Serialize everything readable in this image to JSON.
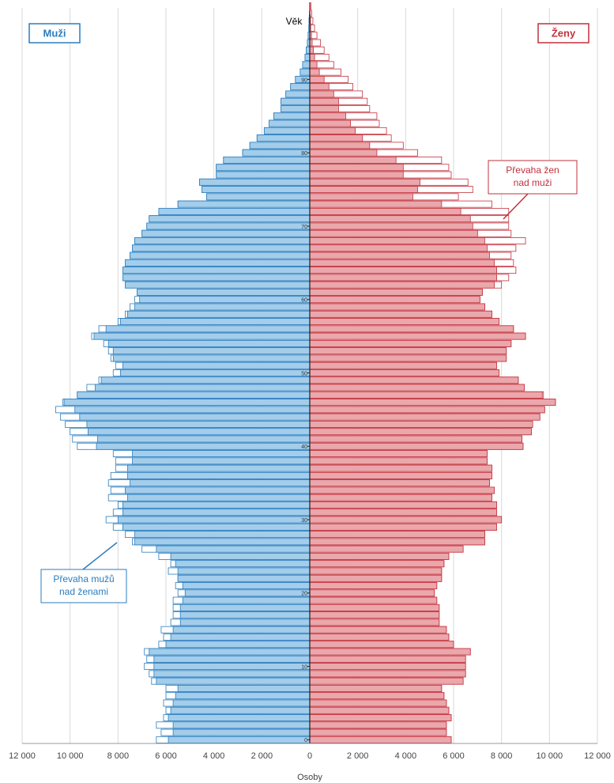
{
  "chart_data": {
    "type": "pyramid",
    "ylabel": "Věk",
    "xlabel": "Osoby",
    "y": [
      0,
      1,
      2,
      3,
      4,
      5,
      6,
      7,
      8,
      9,
      10,
      11,
      12,
      13,
      14,
      15,
      16,
      17,
      18,
      19,
      20,
      21,
      22,
      23,
      24,
      25,
      26,
      27,
      28,
      29,
      30,
      31,
      32,
      33,
      34,
      35,
      36,
      37,
      38,
      39,
      40,
      41,
      42,
      43,
      44,
      45,
      46,
      47,
      48,
      49,
      50,
      51,
      52,
      53,
      54,
      55,
      56,
      57,
      58,
      59,
      60,
      61,
      62,
      63,
      64,
      65,
      66,
      67,
      68,
      69,
      70,
      71,
      72,
      73,
      74,
      75,
      76,
      77,
      78,
      79,
      80,
      81,
      82,
      83,
      84,
      85,
      86,
      87,
      88,
      89,
      90,
      91,
      92,
      93,
      94,
      95,
      96,
      97,
      98,
      99,
      100
    ],
    "series": [
      {
        "name": "Muži",
        "side": "left",
        "color": "#a3cdea",
        "edge": "#2a7dbf",
        "values": [
          6400,
          6200,
          6400,
          6100,
          6000,
          6100,
          6000,
          6000,
          6600,
          6700,
          6900,
          6800,
          6900,
          6300,
          6100,
          6200,
          5800,
          5700,
          5700,
          5700,
          5500,
          5600,
          5500,
          5900,
          5800,
          6300,
          7000,
          7400,
          7700,
          8200,
          8500,
          8200,
          8000,
          8400,
          8300,
          8400,
          8300,
          8100,
          8100,
          8200,
          9700,
          9900,
          10000,
          10200,
          10400,
          10600,
          10300,
          9700,
          9300,
          8800,
          8200,
          8100,
          8300,
          8400,
          8600,
          9100,
          8800,
          8000,
          7700,
          7500,
          7300,
          7200,
          7700,
          7800,
          7800,
          7700,
          7500,
          7400,
          7300,
          7000,
          6800,
          6700,
          6300,
          5500,
          4300,
          4500,
          4600,
          3900,
          3900,
          3600,
          2800,
          2500,
          2200,
          1900,
          1700,
          1500,
          1200,
          1200,
          1000,
          800,
          600,
          400,
          300,
          200,
          150,
          100,
          70,
          40,
          30,
          20,
          10
        ]
      },
      {
        "name": "Ženy",
        "side": "right",
        "color": "#eaa7ac",
        "edge": "#c2313c",
        "values": [
          5900,
          5700,
          5700,
          5900,
          5800,
          5700,
          5600,
          5500,
          6400,
          6500,
          6500,
          6500,
          6700,
          6000,
          5800,
          5700,
          5400,
          5400,
          5400,
          5300,
          5200,
          5300,
          5500,
          5500,
          5600,
          5800,
          6400,
          7300,
          7300,
          7800,
          8000,
          7800,
          7800,
          7600,
          7700,
          7500,
          7600,
          7600,
          7400,
          7400,
          8900,
          8850,
          9250,
          9300,
          9600,
          9800,
          10250,
          9750,
          8950,
          8700,
          7900,
          7800,
          8200,
          8200,
          8400,
          9000,
          8500,
          7900,
          7600,
          7300,
          7100,
          7200,
          8000,
          8300,
          8600,
          8500,
          8400,
          8600,
          9000,
          8400,
          8300,
          8300,
          8300,
          7600,
          6200,
          6800,
          6600,
          5900,
          5800,
          5500,
          4500,
          3900,
          3400,
          3200,
          2900,
          2800,
          2500,
          2400,
          2200,
          1800,
          1600,
          1300,
          1000,
          800,
          600,
          450,
          300,
          200,
          130,
          80,
          50
        ]
      }
    ],
    "xlim": [
      -12000,
      12000
    ],
    "xticks": [
      {
        "value": -12000,
        "label": "12 000"
      },
      {
        "value": -10000,
        "label": "10 000"
      },
      {
        "value": -8000,
        "label": "8 000"
      },
      {
        "value": -6000,
        "label": "6 000"
      },
      {
        "value": -4000,
        "label": "4 000"
      },
      {
        "value": -2000,
        "label": "2 000"
      },
      0,
      {
        "value": 2000,
        "label": "2 000"
      },
      {
        "value": 4000,
        "label": "4 000"
      },
      {
        "value": 6000,
        "label": "6 000"
      },
      {
        "value": 8000,
        "label": "8 000"
      },
      {
        "value": 10000,
        "label": "10 000"
      },
      {
        "value": 12000,
        "label": "12 000"
      }
    ],
    "ylim": [
      -0.5,
      100.5
    ],
    "yticks": [
      0,
      10,
      20,
      30,
      40,
      50,
      60,
      70,
      80,
      90
    ],
    "grid": true,
    "annotations": [
      {
        "lines": [
          "Převaha žen",
          "nad muži"
        ],
        "series": 1
      },
      {
        "lines": [
          "Převaha mužů",
          "nad ženami"
        ],
        "series": 0
      }
    ]
  }
}
